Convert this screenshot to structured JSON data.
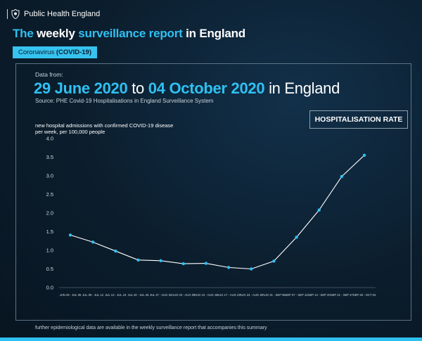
{
  "header": {
    "org_name": "Public Health England",
    "crest_icon": "crest-icon"
  },
  "headline": {
    "part1": "The",
    "part2": " weekly ",
    "part3": "surveillance report",
    "part4": " in England"
  },
  "tag": {
    "prefix": "Coronavirus ",
    "bold": "(COVID-19)"
  },
  "period": {
    "label": "Data from:",
    "start": "29 June 2020",
    "to": " to ",
    "end": "04 October 2020",
    "suffix": " in England"
  },
  "source": "Source: PHE Covid-19 Hospitalisations in England Surveillance System",
  "metric_box": "HOSPITALISATION RATE",
  "footnote": "further epidemiological data are available in the weekly surveillance report that accompanies this summary",
  "colors": {
    "accent": "#2fc0f2",
    "background": "#0b1d2c",
    "line": "#ffffff",
    "marker": "#2fc0f2"
  },
  "chart_data": {
    "type": "line",
    "title": "",
    "ylabel": "new hospital admissions with confirmed COVID-19 disease per week, per 100,000 people",
    "xlabel": "",
    "ylim": [
      0,
      4.0
    ],
    "yticks": [
      "0.0",
      "0.5",
      "1.0",
      "1.5",
      "2.0",
      "2.5",
      "3.0",
      "3.5",
      "4.0"
    ],
    "grid": false,
    "categories": [
      "JUN 29 - JUL 05",
      "JUL 06 - JUL 12",
      "JUL 13 - JUL 19",
      "JUL 20 - JUL 26",
      "JUL 27 - AUG 02",
      "AUG 03 - AUG 09",
      "AUG 10 - AUG 16",
      "AUG 17 - AUG 23",
      "AUG 24 - AUG 30",
      "AUG 31 - SEP 06",
      "SEP 07 - SEP 13",
      "SEP 14 - SEP 20",
      "SEP 21 - SEP 27",
      "SEP 28 - OCT 04"
    ],
    "series": [
      {
        "values": [
          1.41,
          1.22,
          0.98,
          0.74,
          0.72,
          0.64,
          0.65,
          0.54,
          0.5,
          0.71,
          1.35,
          2.08,
          2.98,
          3.55
        ]
      }
    ]
  }
}
